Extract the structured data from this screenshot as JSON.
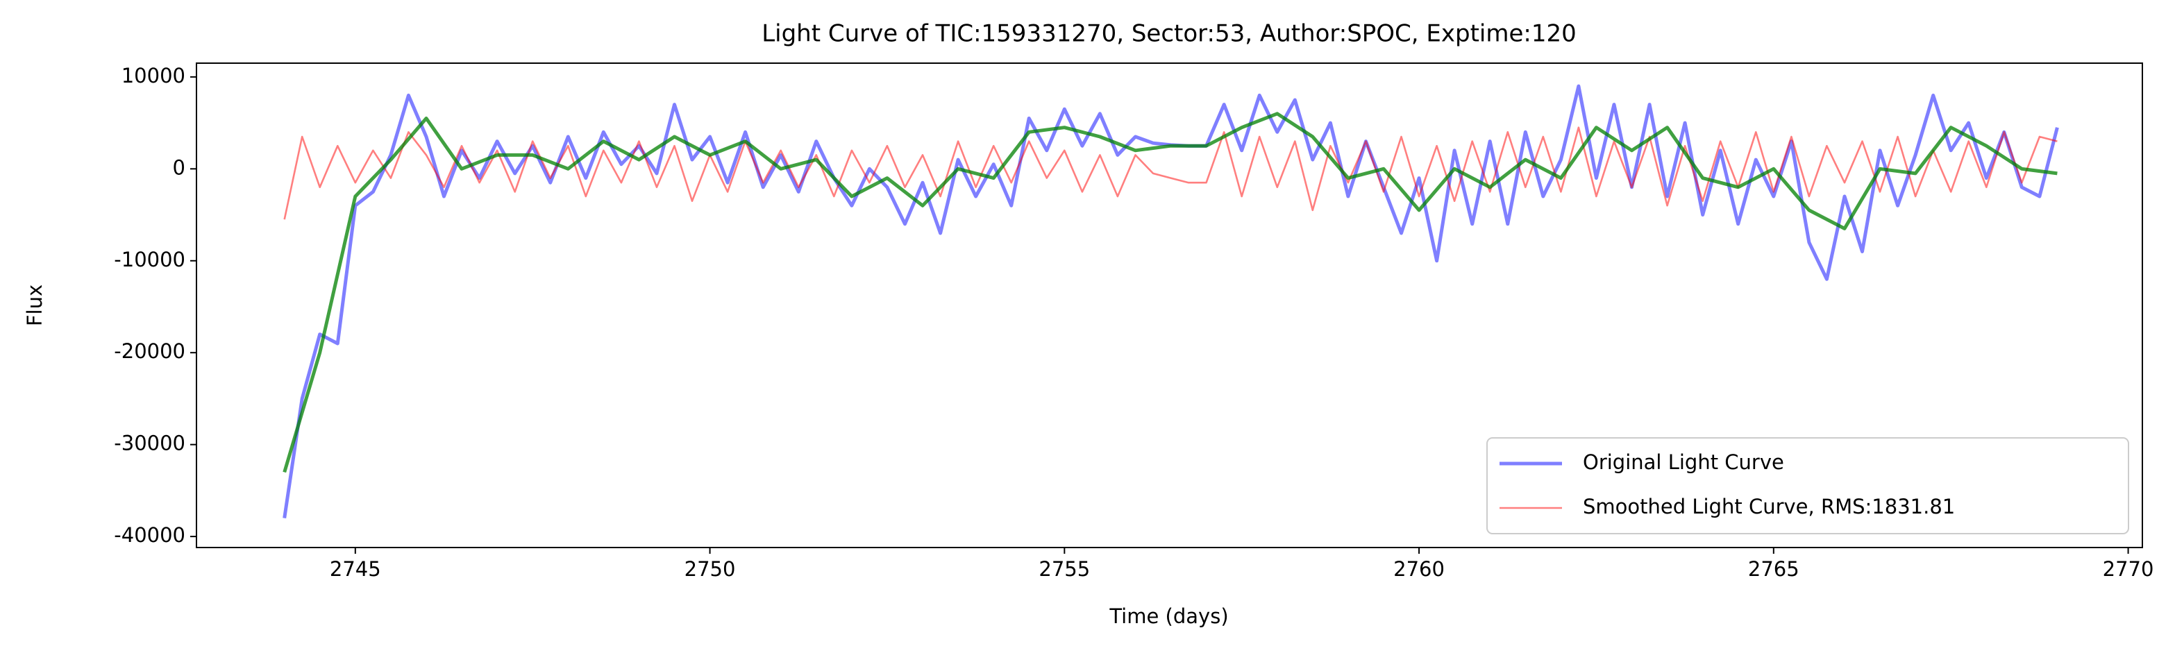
{
  "chart_data": {
    "type": "line",
    "title": "Light Curve of TIC:159331270, Sector:53, Author:SPOC, Exptime:120",
    "xlabel": "Time (days)",
    "ylabel": "Flux",
    "xlim": [
      2742.76,
      2770.2
    ],
    "ylim": [
      -41200,
      11500
    ],
    "xticks": [
      2745,
      2750,
      2755,
      2760,
      2765,
      2770
    ],
    "yticks": [
      -40000,
      -30000,
      -20000,
      -10000,
      0,
      10000
    ],
    "legend": "lower right",
    "x": [
      2744,
      2744.25,
      2744.5,
      2744.75,
      2745,
      2745.25,
      2745.5,
      2745.75,
      2746,
      2746.25,
      2746.5,
      2746.75,
      2747,
      2747.25,
      2747.5,
      2747.75,
      2748,
      2748.25,
      2748.5,
      2748.75,
      2749,
      2749.25,
      2749.5,
      2749.75,
      2750,
      2750.25,
      2750.5,
      2750.75,
      2751,
      2751.25,
      2751.5,
      2751.75,
      2752,
      2752.25,
      2752.5,
      2752.75,
      2753,
      2753.25,
      2753.5,
      2753.75,
      2754,
      2754.25,
      2754.5,
      2754.75,
      2755,
      2755.25,
      2755.5,
      2755.75,
      2756,
      2756.25,
      2756.5,
      2756.75,
      2757,
      2757.25,
      2757.5,
      2757.75,
      2758,
      2758.25,
      2758.5,
      2758.75,
      2759,
      2759.25,
      2759.5,
      2759.75,
      2760,
      2760.25,
      2760.5,
      2760.75,
      2761,
      2761.25,
      2761.5,
      2761.75,
      2762,
      2762.25,
      2762.5,
      2762.75,
      2763,
      2763.25,
      2763.5,
      2763.75,
      2764,
      2764.25,
      2764.5,
      2764.75,
      2765,
      2765.25,
      2765.5,
      2765.75,
      2766,
      2766.25,
      2766.5,
      2766.75,
      2767,
      2767.25,
      2767.5,
      2767.75,
      2768,
      2768.25,
      2768.5,
      2768.75,
      2769
    ],
    "series": [
      {
        "name": "Original Light Curve",
        "color": "#0000ff",
        "values": [
          -38000,
          -25000,
          -18000,
          -19000,
          -4000,
          -2500,
          1500,
          8000,
          3500,
          -3000,
          2000,
          -1000,
          3000,
          -500,
          2500,
          -1500,
          3500,
          -1000,
          4000,
          500,
          2500,
          -500,
          7000,
          1000,
          3500,
          -1500,
          4000,
          -2000,
          1500,
          -2500,
          3000,
          -1000,
          -4000,
          0,
          -2000,
          -6000,
          -1500,
          -7000,
          1000,
          -3000,
          500,
          -4000,
          5500,
          2000,
          6500,
          2500,
          6000,
          1500,
          3500,
          2800,
          2600,
          2500,
          2500,
          7000,
          2000,
          8000,
          4000,
          7500,
          1000,
          5000,
          -3000,
          3000,
          -2000,
          -7000,
          -1000,
          -10000,
          2000,
          -6000,
          3000,
          -6000,
          4000,
          -3000,
          1000,
          9000,
          -1000,
          7000,
          -2000,
          7000,
          -3000,
          5000,
          -5000,
          2000,
          -6000,
          1000,
          -3000,
          3000,
          -8000,
          -12000,
          -3000,
          -9000,
          2000,
          -4000,
          1500,
          8000,
          2000,
          5000,
          -1000,
          4000,
          -2000,
          -3000,
          4500
        ]
      },
      {
        "name": "Smoothed Light Curve, RMS:1831.81",
        "color": "#ff0000",
        "values": [
          -5500,
          3500,
          -2000,
          2500,
          -1500,
          2000,
          -1000,
          4000,
          1500,
          -2000,
          2500,
          -1500,
          2000,
          -2500,
          3000,
          -1000,
          2500,
          -3000,
          2000,
          -1500,
          3000,
          -2000,
          2500,
          -3500,
          1500,
          -2500,
          3000,
          -1500,
          2000,
          -2000,
          1500,
          -3000,
          2000,
          -1500,
          2500,
          -2000,
          1500,
          -3000,
          3000,
          -2000,
          2500,
          -1500,
          3000,
          -1000,
          2000,
          -2500,
          1500,
          -3000,
          1500,
          -500,
          -1000,
          -1500,
          -1500,
          4000,
          -3000,
          3500,
          -2000,
          3000,
          -4500,
          2500,
          -1500,
          3000,
          -2500,
          3500,
          -3000,
          2500,
          -3500,
          3000,
          -2500,
          4000,
          -2000,
          3500,
          -2500,
          4500,
          -3000,
          3000,
          -2000,
          3500,
          -4000,
          2500,
          -3500,
          3000,
          -2000,
          4000,
          -2500,
          3500,
          -3000,
          2500,
          -1500,
          3000,
          -2500,
          3500,
          -3000,
          2000,
          -2500,
          3000,
          -2000,
          4000,
          -1500,
          3500,
          3000
        ]
      },
      {
        "color": "#008000",
        "x": [
          2744,
          2744.5,
          2745,
          2745.5,
          2746,
          2746.5,
          2747,
          2747.5,
          2748,
          2748.5,
          2749,
          2749.5,
          2750,
          2750.5,
          2751,
          2751.5,
          2752,
          2752.5,
          2753,
          2753.5,
          2754,
          2754.5,
          2755,
          2755.5,
          2756,
          2756.5,
          2757,
          2757.5,
          2758,
          2758.5,
          2759,
          2759.5,
          2760,
          2760.5,
          2761,
          2761.5,
          2762,
          2762.5,
          2763,
          2763.5,
          2764,
          2764.5,
          2765,
          2765.5,
          2766,
          2766.5,
          2767,
          2767.5,
          2768,
          2768.5,
          2769
        ],
        "values": [
          -33000,
          -20000,
          -3000,
          1000,
          5500,
          0,
          1500,
          1500,
          0,
          3000,
          1000,
          3500,
          1500,
          3000,
          0,
          1000,
          -3000,
          -1000,
          -4000,
          0,
          -1000,
          4000,
          4500,
          3500,
          2000,
          2500,
          2500,
          4500,
          6000,
          3500,
          -1000,
          0,
          -4500,
          0,
          -2000,
          1000,
          -1000,
          4500,
          2000,
          4500,
          -1000,
          -2000,
          0,
          -4500,
          -6500,
          0,
          -500,
          4500,
          2500,
          0,
          -500
        ]
      }
    ]
  }
}
